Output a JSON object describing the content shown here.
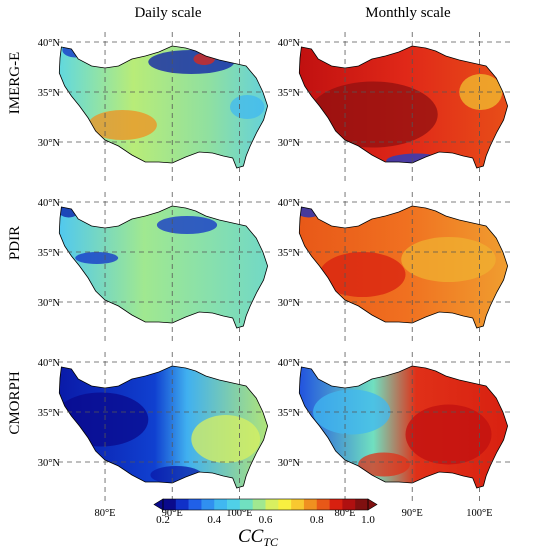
{
  "chart_data": {
    "type": "heatmap",
    "columns": [
      "Daily scale",
      "Monthly scale"
    ],
    "rows": [
      "IMERG-E",
      "PDIR",
      "CMORPH"
    ],
    "lat_ticks": [
      30,
      35,
      40
    ],
    "lat_labels": [
      "30°N",
      "35°N",
      "40°N"
    ],
    "lon_ticks": [
      80,
      90,
      100
    ],
    "lon_labels": [
      "80°E",
      "90°E",
      "100°E"
    ],
    "lon_range": [
      73,
      105
    ],
    "lat_range": [
      26,
      41
    ],
    "grid": true,
    "colorbar": {
      "label_main": "CC",
      "label_sub": "TC",
      "ticks": [
        0.2,
        0.4,
        0.6,
        0.8,
        1.0
      ],
      "tick_labels": [
        "0.2",
        "0.4",
        "0.6",
        "0.8",
        "1.0"
      ],
      "range": [
        0.2,
        1.0
      ],
      "extend": "both",
      "colors": [
        "#0a0a8c",
        "#1030c8",
        "#2060e8",
        "#3090f0",
        "#40b8f0",
        "#50d0e8",
        "#70e0c0",
        "#a0e890",
        "#d8f060",
        "#f8f040",
        "#f8c830",
        "#f09020",
        "#e85818",
        "#d82010",
        "#b01010",
        "#801010"
      ]
    },
    "panels": [
      {
        "row": 0,
        "col": 0,
        "mean_cc": 0.58
      },
      {
        "row": 0,
        "col": 1,
        "mean_cc": 0.86
      },
      {
        "row": 1,
        "col": 0,
        "mean_cc": 0.57
      },
      {
        "row": 1,
        "col": 1,
        "mean_cc": 0.81
      },
      {
        "row": 2,
        "col": 0,
        "mean_cc": 0.45
      },
      {
        "row": 2,
        "col": 1,
        "mean_cc": 0.74
      }
    ]
  }
}
